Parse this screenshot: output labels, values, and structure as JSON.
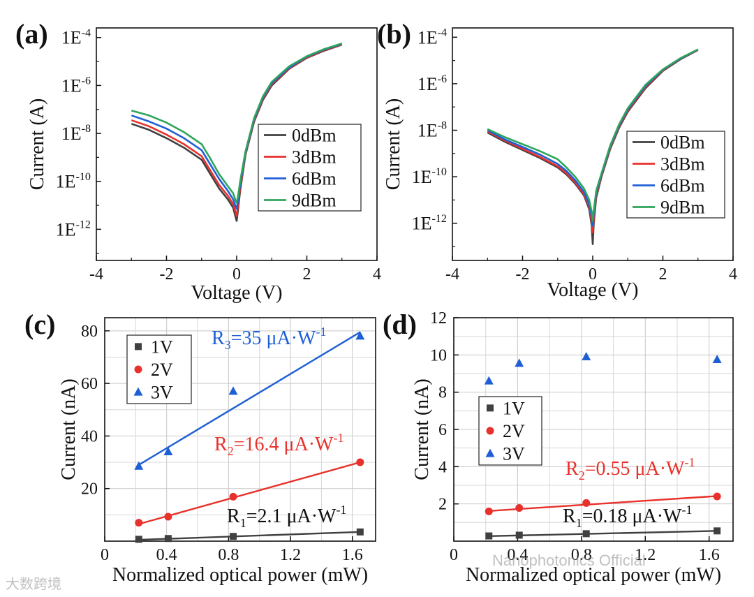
{
  "watermarks": [
    "Nanophotonics Official",
    "大数跨境"
  ],
  "chart_data": [
    {
      "panel_label": "(a)",
      "type": "line",
      "yscale": "log",
      "xlabel": "Voltage (V)",
      "ylabel": "Current (A)",
      "xlim": [
        -4,
        4
      ],
      "ylim_log10": [
        -13.3,
        -3.6
      ],
      "xticks": [
        "-4",
        "-2",
        "0",
        "2",
        "4"
      ],
      "yticks": [
        {
          "v": -4,
          "text": "1E",
          "exp": "-4"
        },
        {
          "v": -6,
          "text": "1E",
          "exp": "-6"
        },
        {
          "v": -8,
          "text": "1E",
          "exp": "-8"
        },
        {
          "v": -10,
          "text": "1E",
          "exp": "-10"
        },
        {
          "v": -12,
          "text": "1E",
          "exp": "-12"
        }
      ],
      "legend": "right-middle",
      "series": [
        {
          "name": "0dBm",
          "color": "#404040",
          "x": [
            -3,
            -2.5,
            -2,
            -1.5,
            -1,
            -0.75,
            -0.5,
            -0.25,
            -0.1,
            -0.03,
            0,
            0.03,
            0.1,
            0.25,
            0.5,
            0.75,
            1,
            1.5,
            2,
            2.5,
            3
          ],
          "log10_y": [
            -7.6,
            -7.85,
            -8.2,
            -8.6,
            -9.1,
            -9.7,
            -10.3,
            -10.75,
            -11.1,
            -11.5,
            -11.65,
            -11.3,
            -10.4,
            -8.9,
            -7.5,
            -6.6,
            -6.0,
            -5.3,
            -4.85,
            -4.55,
            -4.3
          ]
        },
        {
          "name": "3dBm",
          "color": "#e8312b",
          "x": [
            -3,
            -2.5,
            -2,
            -1.5,
            -1,
            -0.75,
            -0.5,
            -0.25,
            -0.1,
            -0.03,
            0,
            0.03,
            0.1,
            0.25,
            0.5,
            0.75,
            1,
            1.5,
            2,
            2.5,
            3
          ],
          "log10_y": [
            -7.45,
            -7.7,
            -8.05,
            -8.45,
            -8.95,
            -9.55,
            -10.15,
            -10.6,
            -10.95,
            -11.3,
            -11.45,
            -11.1,
            -10.3,
            -8.85,
            -7.45,
            -6.55,
            -5.95,
            -5.28,
            -4.83,
            -4.53,
            -4.29
          ]
        },
        {
          "name": "6dBm",
          "color": "#1f5fd6",
          "x": [
            -3,
            -2.5,
            -2,
            -1.5,
            -1,
            -0.75,
            -0.5,
            -0.25,
            -0.1,
            -0.03,
            0,
            0.03,
            0.1,
            0.25,
            0.5,
            0.75,
            1,
            1.5,
            2,
            2.5,
            3
          ],
          "log10_y": [
            -7.25,
            -7.5,
            -7.8,
            -8.2,
            -8.7,
            -9.3,
            -9.9,
            -10.4,
            -10.75,
            -11.05,
            -11.15,
            -10.9,
            -10.15,
            -8.8,
            -7.4,
            -6.5,
            -5.9,
            -5.25,
            -4.8,
            -4.5,
            -4.27
          ]
        },
        {
          "name": "9dBm",
          "color": "#2ea55a",
          "x": [
            -3,
            -2.5,
            -2,
            -1.5,
            -1,
            -0.75,
            -0.5,
            -0.25,
            -0.1,
            -0.03,
            0,
            0.03,
            0.1,
            0.25,
            0.5,
            0.75,
            1,
            1.5,
            2,
            2.5,
            3
          ],
          "log10_y": [
            -7.05,
            -7.25,
            -7.55,
            -7.95,
            -8.45,
            -9.05,
            -9.7,
            -10.2,
            -10.5,
            -10.8,
            -10.9,
            -10.7,
            -10.0,
            -8.75,
            -7.35,
            -6.45,
            -5.85,
            -5.2,
            -4.78,
            -4.48,
            -4.25
          ]
        }
      ]
    },
    {
      "panel_label": "(b)",
      "type": "line",
      "yscale": "log",
      "xlabel": "Voltage (V)",
      "ylabel": "Current (A)",
      "xlim": [
        -4,
        4
      ],
      "ylim_log10": [
        -13.6,
        -3.6
      ],
      "xticks": [
        "-4",
        "-2",
        "0",
        "2",
        "4"
      ],
      "yticks": [
        {
          "v": -4,
          "text": "1E",
          "exp": "-4"
        },
        {
          "v": -6,
          "text": "1E",
          "exp": "-6"
        },
        {
          "v": -8,
          "text": "1E",
          "exp": "-8"
        },
        {
          "v": -10,
          "text": "1E",
          "exp": "-10"
        },
        {
          "v": -12,
          "text": "1E",
          "exp": "-12"
        }
      ],
      "legend": "right-middle",
      "series": [
        {
          "name": "0dBm",
          "color": "#404040",
          "x": [
            -3,
            -2.5,
            -2,
            -1.5,
            -1,
            -0.75,
            -0.5,
            -0.25,
            -0.1,
            -0.03,
            0,
            0.03,
            0.1,
            0.25,
            0.5,
            0.75,
            1,
            1.5,
            2,
            2.5,
            3
          ],
          "log10_y": [
            -8.1,
            -8.5,
            -8.85,
            -9.2,
            -9.6,
            -9.9,
            -10.3,
            -10.8,
            -11.4,
            -12.1,
            -12.9,
            -12.0,
            -10.9,
            -10.0,
            -8.8,
            -7.9,
            -7.2,
            -6.2,
            -5.45,
            -4.95,
            -4.55
          ]
        },
        {
          "name": "3dBm",
          "color": "#e8312b",
          "x": [
            -3,
            -2.5,
            -2,
            -1.5,
            -1,
            -0.75,
            -0.5,
            -0.25,
            -0.1,
            -0.03,
            0,
            0.03,
            0.1,
            0.25,
            0.5,
            0.75,
            1,
            1.5,
            2,
            2.5,
            3
          ],
          "log10_y": [
            -8.05,
            -8.45,
            -8.8,
            -9.15,
            -9.55,
            -9.85,
            -10.25,
            -10.75,
            -11.3,
            -11.9,
            -12.4,
            -11.8,
            -10.8,
            -9.95,
            -8.75,
            -7.85,
            -7.15,
            -6.15,
            -5.42,
            -4.93,
            -4.54
          ]
        },
        {
          "name": "6dBm",
          "color": "#1f5fd6",
          "x": [
            -3,
            -2.5,
            -2,
            -1.5,
            -1,
            -0.75,
            -0.5,
            -0.25,
            -0.1,
            -0.03,
            0,
            0.03,
            0.1,
            0.25,
            0.5,
            0.75,
            1,
            1.5,
            2,
            2.5,
            3
          ],
          "log10_y": [
            -8.0,
            -8.4,
            -8.72,
            -9.05,
            -9.45,
            -9.75,
            -10.15,
            -10.65,
            -11.2,
            -11.7,
            -12.1,
            -11.6,
            -10.7,
            -9.9,
            -8.7,
            -7.8,
            -7.1,
            -6.1,
            -5.4,
            -4.92,
            -4.53
          ]
        },
        {
          "name": "9dBm",
          "color": "#2ea55a",
          "x": [
            -3,
            -2.5,
            -2,
            -1.5,
            -1,
            -0.75,
            -0.5,
            -0.25,
            -0.1,
            -0.03,
            0,
            0.03,
            0.1,
            0.25,
            0.5,
            0.75,
            1,
            1.5,
            2,
            2.5,
            3
          ],
          "log10_y": [
            -7.95,
            -8.3,
            -8.6,
            -8.9,
            -9.25,
            -9.6,
            -10.0,
            -10.5,
            -11.0,
            -11.5,
            -11.9,
            -11.45,
            -10.6,
            -9.85,
            -8.65,
            -7.75,
            -7.05,
            -6.05,
            -5.38,
            -4.9,
            -4.52
          ]
        }
      ]
    },
    {
      "panel_label": "(c)",
      "type": "scatter",
      "xlabel": "Normalized optical power (mW)",
      "ylabel": "Current (nA)",
      "xlim": [
        0,
        1.75
      ],
      "ylim": [
        0,
        85
      ],
      "xticks": [
        0,
        0.4,
        0.8,
        1.2,
        1.6
      ],
      "yticks": [
        20,
        40,
        60,
        80
      ],
      "grid": true,
      "legend": "top-left",
      "series": [
        {
          "name": "1V",
          "marker": "square",
          "color": "#404040",
          "x": [
            0.22,
            0.41,
            0.83,
            1.65
          ],
          "y": [
            0.7,
            1.0,
            1.8,
            3.5
          ],
          "fit": {
            "x": [
              0.22,
              1.65
            ],
            "y": [
              0.5,
              3.5
            ]
          },
          "annotation": {
            "R": "R",
            "sub": "1",
            "value": "=2.1 μA·W",
            "exp": "-1"
          }
        },
        {
          "name": "2V",
          "marker": "circle",
          "color": "#e8312b",
          "x": [
            0.22,
            0.41,
            0.83,
            1.65
          ],
          "y": [
            7.0,
            9.3,
            16.9,
            30.0
          ],
          "fit": {
            "x": [
              0.22,
              1.65
            ],
            "y": [
              6.5,
              30.0
            ]
          },
          "annotation": {
            "R": "R",
            "sub": "2",
            "value": "=16.4 μA·W",
            "exp": "-1"
          }
        },
        {
          "name": "3V",
          "marker": "triangle",
          "color": "#1f5fd6",
          "x": [
            0.22,
            0.41,
            0.83,
            1.65
          ],
          "y": [
            28.5,
            34.0,
            57.0,
            78.0
          ],
          "fit": {
            "x": [
              0.22,
              1.65
            ],
            "y": [
              29.0,
              79.5
            ]
          },
          "annotation": {
            "R": "R",
            "sub": "3",
            "value": "=35 μA·W",
            "exp": "-1"
          }
        }
      ]
    },
    {
      "panel_label": "(d)",
      "type": "scatter",
      "xlabel": "Normalized optical power (mW)",
      "ylabel": "Current (nA)",
      "xlim": [
        0,
        1.75
      ],
      "ylim": [
        0,
        12
      ],
      "xticks": [
        0,
        0.4,
        0.8,
        1.2,
        1.6
      ],
      "yticks": [
        2,
        4,
        6,
        8,
        10,
        12
      ],
      "grid": true,
      "legend": "left-middle",
      "series": [
        {
          "name": "1V",
          "marker": "square",
          "color": "#404040",
          "x": [
            0.22,
            0.41,
            0.83,
            1.65
          ],
          "y": [
            0.28,
            0.32,
            0.4,
            0.55
          ],
          "fit": {
            "x": [
              0.22,
              1.65
            ],
            "y": [
              0.27,
              0.55
            ]
          },
          "annotation": {
            "R": "R",
            "sub": "1",
            "value": "=0.18 μA·W",
            "exp": "-1"
          }
        },
        {
          "name": "2V",
          "marker": "circle",
          "color": "#e8312b",
          "x": [
            0.22,
            0.41,
            0.83,
            1.65
          ],
          "y": [
            1.6,
            1.78,
            2.05,
            2.4
          ],
          "fit": {
            "x": [
              0.22,
              1.65
            ],
            "y": [
              1.62,
              2.42
            ]
          },
          "annotation": {
            "R": "R",
            "sub": "2",
            "value": "=0.55 μA·W",
            "exp": "-1"
          }
        },
        {
          "name": "3V",
          "marker": "triangle",
          "color": "#1f5fd6",
          "x": [
            0.22,
            0.41,
            0.83,
            1.65
          ],
          "y": [
            8.6,
            9.55,
            9.9,
            9.75
          ]
        }
      ]
    }
  ]
}
